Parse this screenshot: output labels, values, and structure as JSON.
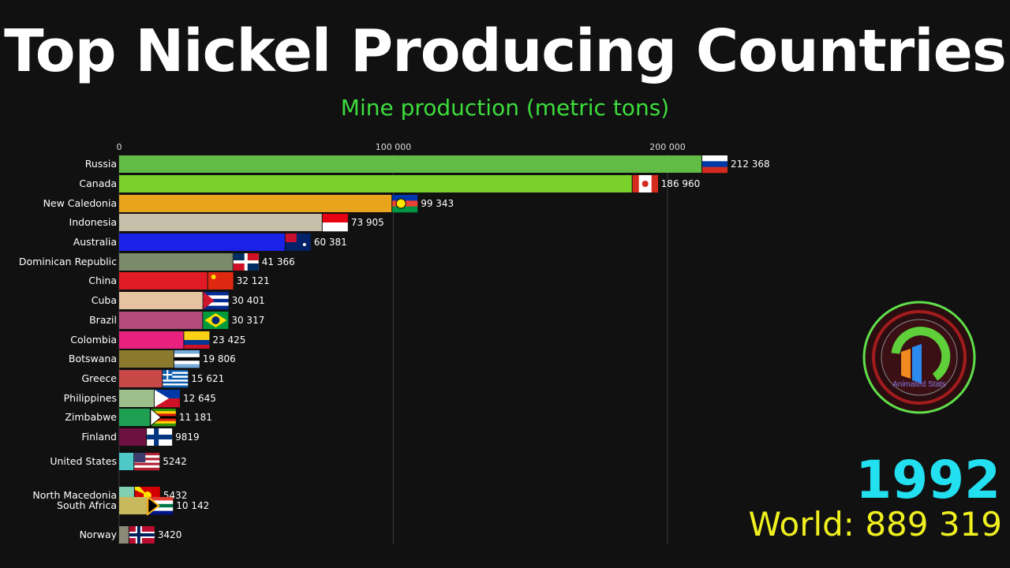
{
  "title": "Top Nickel Producing Countries",
  "subtitle": "Mine production (metric tons)",
  "year": "1992",
  "world_label": "World:",
  "world_value": "889 319",
  "logo_text": "Animated Stats",
  "chart_data": {
    "type": "bar",
    "orientation": "horizontal",
    "xlim": [
      0,
      220000
    ],
    "x_ticks": [
      {
        "value": 0,
        "label": "0"
      },
      {
        "value": 100000,
        "label": "100 000"
      },
      {
        "value": 200000,
        "label": "200 000"
      }
    ],
    "grid": true,
    "bars": [
      {
        "country": "Russia",
        "value": 212368,
        "label": "212 368",
        "color": "#62bb45",
        "flag": "russia-flag"
      },
      {
        "country": "Canada",
        "value": 186960,
        "label": "186 960",
        "color": "#79d12a",
        "flag": "canada-flag"
      },
      {
        "country": "New Caledonia",
        "value": 99343,
        "label": "99 343",
        "color": "#e8a41c",
        "flag": "new-caledonia-flag"
      },
      {
        "country": "Indonesia",
        "value": 73905,
        "label": "73 905",
        "color": "#c6bfa9",
        "flag": "indonesia-flag"
      },
      {
        "country": "Australia",
        "value": 60381,
        "label": "60 381",
        "color": "#1a22e8",
        "flag": "australia-flag"
      },
      {
        "country": "Dominican Republic",
        "value": 41366,
        "label": "41 366",
        "color": "#7b8a6b",
        "flag": "dominican-republic-flag"
      },
      {
        "country": "China",
        "value": 32121,
        "label": "32 121",
        "color": "#e01b25",
        "flag": "china-flag"
      },
      {
        "country": "Cuba",
        "value": 30401,
        "label": "30 401",
        "color": "#e5c3a0",
        "flag": "cuba-flag"
      },
      {
        "country": "Brazil",
        "value": 30317,
        "label": "30 317",
        "color": "#b24b7c",
        "flag": "brazil-flag"
      },
      {
        "country": "Colombia",
        "value": 23425,
        "label": "23 425",
        "color": "#e8217f",
        "flag": "colombia-flag"
      },
      {
        "country": "Botswana",
        "value": 19806,
        "label": "19 806",
        "color": "#8b7a2e",
        "flag": "botswana-flag"
      },
      {
        "country": "Greece",
        "value": 15621,
        "label": "15 621",
        "color": "#c84848",
        "flag": "greece-flag"
      },
      {
        "country": "Philippines",
        "value": 12645,
        "label": "12 645",
        "color": "#9dbf8c",
        "flag": "philippines-flag"
      },
      {
        "country": "Zimbabwe",
        "value": 11181,
        "label": "11 181",
        "color": "#1f9f52",
        "flag": "zimbabwe-flag"
      },
      {
        "country": "Finland",
        "value": 9819,
        "label": "9819",
        "color": "#6e1040",
        "flag": "finland-flag"
      },
      {
        "country": "United States",
        "value": 5242,
        "label": "5242",
        "color": "#4fc8c8",
        "flag": "usa-flag"
      },
      {
        "country": "North Macedonia",
        "value": 5432,
        "label": "5432",
        "color": "#7fcfb0",
        "flag": "north-macedonia-flag"
      },
      {
        "country": "South Africa",
        "value": 10142,
        "label": "10 142",
        "color": "#c8b85e",
        "flag": "south-africa-flag"
      },
      {
        "country": "Norway",
        "value": 3420,
        "label": "3420",
        "color": "#8a8a78",
        "flag": "norway-flag"
      }
    ]
  }
}
